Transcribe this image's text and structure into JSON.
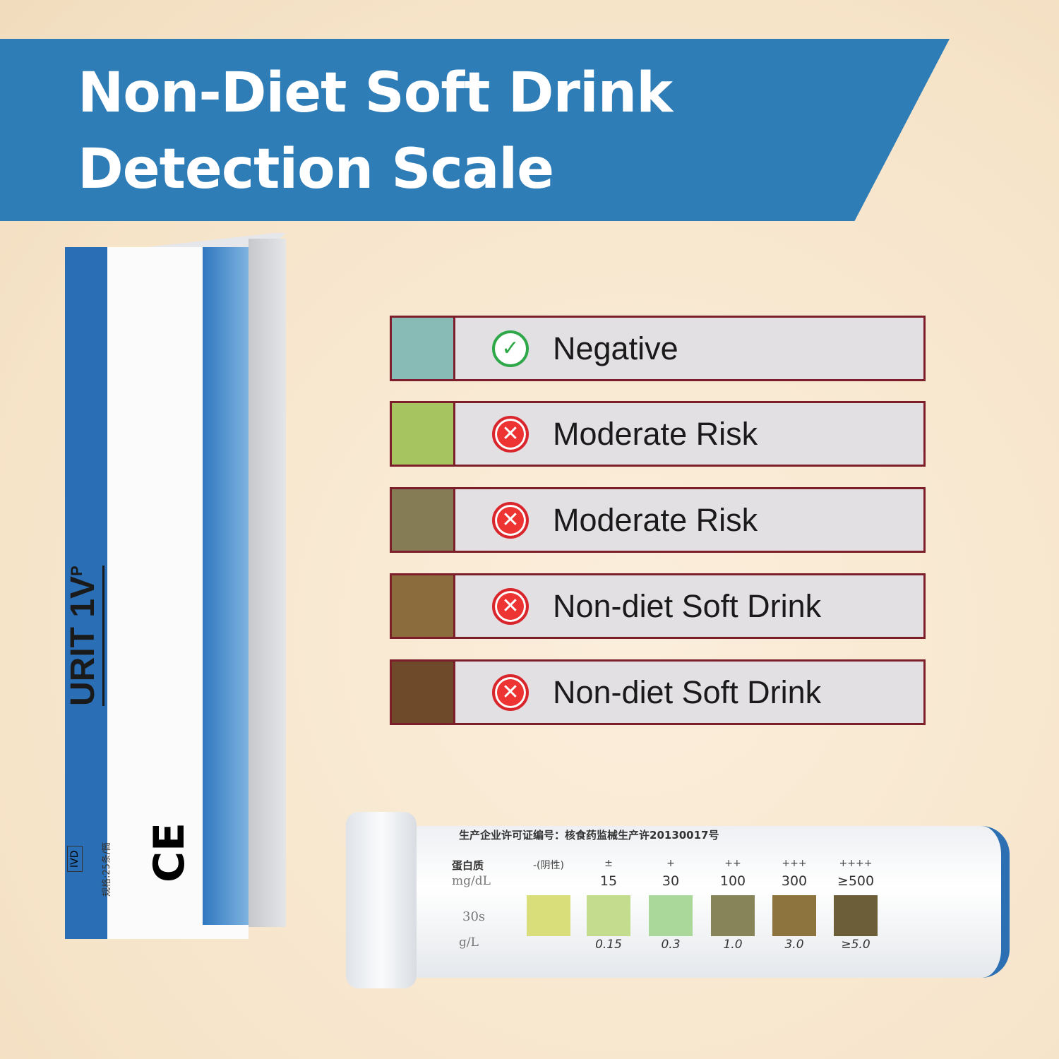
{
  "title": {
    "line1": "Non-Diet Soft Drink",
    "line2": "Detection Scale"
  },
  "scale": [
    {
      "color": "#88bbb5",
      "icon": "check-circle-icon",
      "status": "negative",
      "label": "Negative"
    },
    {
      "color": "#a6c45f",
      "icon": "x-circle-icon",
      "status": "positive",
      "label": "Moderate Risk"
    },
    {
      "color": "#857c55",
      "icon": "x-circle-icon",
      "status": "positive",
      "label": "Moderate Risk"
    },
    {
      "color": "#8b6c3c",
      "icon": "x-circle-icon",
      "status": "positive",
      "label": "Non-diet Soft Drink"
    },
    {
      "color": "#6e4a2a",
      "icon": "x-circle-icon",
      "status": "positive",
      "label": "Non-diet Soft Drink"
    }
  ],
  "box": {
    "brand": "URIT 1V",
    "brand_sup": "P",
    "ivd": "IVD",
    "ce": "CE",
    "spec": "规格:25条/筒"
  },
  "tube": {
    "header": "生产企业许可证编号：核食药监械生产许20130017号",
    "analyte": "蛋白质",
    "unit1": "mg/dL",
    "time": "30s",
    "unit2": "g/L",
    "levels": [
      {
        "sign": "-(阴性)",
        "mgdl": "",
        "gl": "",
        "color": "#d9de7a"
      },
      {
        "sign": "±",
        "mgdl": "15",
        "gl": "0.15",
        "color": "#c3dc8e"
      },
      {
        "sign": "+",
        "mgdl": "30",
        "gl": "0.3",
        "color": "#a9d89a"
      },
      {
        "sign": "++",
        "mgdl": "100",
        "gl": "1.0",
        "color": "#88845a"
      },
      {
        "sign": "+++",
        "mgdl": "300",
        "gl": "3.0",
        "color": "#8d743f"
      },
      {
        "sign": "++++",
        "mgdl": "≥500",
        "gl": "≥5.0",
        "color": "#6d5e3a"
      }
    ]
  }
}
